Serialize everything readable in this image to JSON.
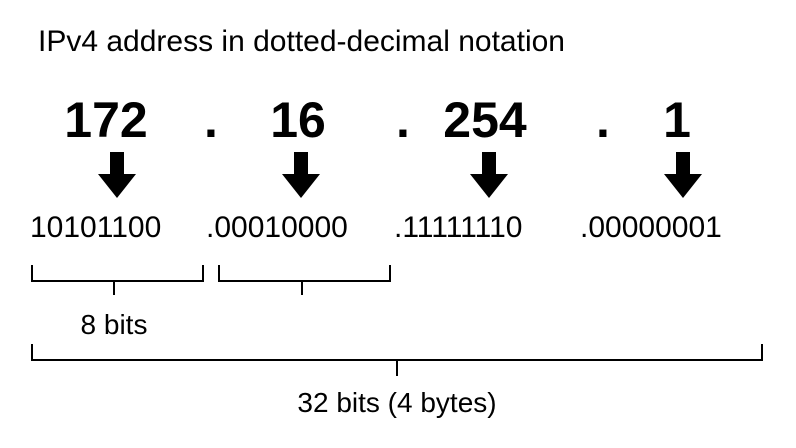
{
  "title": "IPv4 address in dotted-decimal notation",
  "octets": [
    "172",
    "16",
    "254",
    "1"
  ],
  "separator": ".",
  "binary": [
    "10101100",
    ".00010000",
    ".11111110",
    ".00000001"
  ],
  "labels": {
    "byte": "8 bits",
    "total": "32 bits (4 bytes)"
  },
  "icons": {
    "arrow": "arrow-down-icon"
  }
}
